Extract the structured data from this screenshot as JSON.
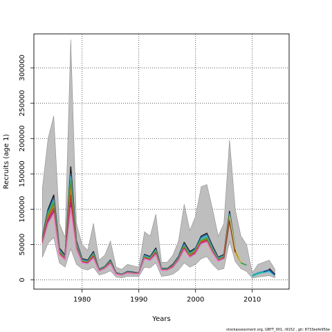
{
  "chart_data": {
    "type": "line",
    "xlabel": "Years",
    "ylabel": "Recruits (age 1)",
    "xlim": [
      1971.5,
      2016.5
    ],
    "ylim": [
      -13000,
      348000
    ],
    "x_ticks": [
      1980,
      1990,
      2000,
      2010
    ],
    "y_ticks": [
      0,
      50000,
      100000,
      150000,
      200000,
      250000,
      300000
    ],
    "grid": true,
    "footer": "stockassessment.org, GBYT_001, r9152 , git: 8733eefe95be",
    "x": [
      1973,
      1974,
      1975,
      1976,
      1977,
      1978,
      1979,
      1980,
      1981,
      1982,
      1983,
      1984,
      1985,
      1986,
      1987,
      1988,
      1989,
      1990,
      1991,
      1992,
      1993,
      1994,
      1995,
      1996,
      1997,
      1998,
      1999,
      2000,
      2001,
      2002,
      2003,
      2004,
      2005,
      2006,
      2007,
      2008,
      2009,
      2010,
      2011,
      2012,
      2013,
      2014
    ],
    "band_upper": [
      130000,
      200000,
      232000,
      80000,
      60000,
      340000,
      80000,
      50000,
      42000,
      80000,
      28000,
      35000,
      55000,
      18000,
      15000,
      22000,
      20000,
      18000,
      68000,
      62000,
      93000,
      25000,
      25000,
      35000,
      55000,
      107000,
      70000,
      90000,
      132000,
      135000,
      100000,
      62000,
      80000,
      198000,
      100000,
      62000,
      50000,
      10000,
      22000,
      25000,
      28000,
      15000
    ],
    "band_lower": [
      32000,
      52000,
      60000,
      24000,
      18000,
      44000,
      22000,
      16000,
      14000,
      18000,
      7000,
      9000,
      13000,
      4000,
      3000,
      5000,
      5000,
      5000,
      18000,
      17000,
      24000,
      5000,
      6000,
      8000,
      14000,
      24000,
      18000,
      22000,
      30000,
      33000,
      22000,
      14000,
      16000,
      55000,
      26000,
      16000,
      12000,
      2500,
      4000,
      5000,
      6000,
      3000
    ],
    "series": [
      {
        "color": "#1f1f1f",
        "values": [
          60000,
          100000,
          120000,
          45000,
          35000,
          160000,
          55000,
          30000,
          28000,
          40000,
          15000,
          19000,
          28000,
          10000,
          8000,
          12000,
          11000,
          10000,
          36000,
          33000,
          45000,
          16000,
          16000,
          22000,
          33000,
          53000,
          40000,
          45000,
          62000,
          66000,
          48000,
          32000,
          36000,
          97000,
          45000,
          null,
          null,
          null,
          null,
          null,
          16000,
          8000
        ]
      },
      {
        "color": "#2a6fb5",
        "values": [
          58000,
          97000,
          115000,
          43000,
          33000,
          150000,
          53000,
          29000,
          27000,
          38000,
          14500,
          18500,
          27000,
          9500,
          7800,
          11500,
          10500,
          9800,
          35000,
          32000,
          43000,
          15500,
          15500,
          21000,
          32000,
          51000,
          38000,
          44000,
          60000,
          64000,
          46000,
          31000,
          35000,
          94000,
          44000,
          null,
          null,
          6500,
          10000,
          12000,
          14000,
          7500
        ]
      },
      {
        "color": "#3cb8c9",
        "values": [
          57000,
          94000,
          112000,
          42000,
          32000,
          146000,
          52000,
          28000,
          26000,
          37000,
          14000,
          18000,
          26000,
          9200,
          7500,
          11000,
          10200,
          9500,
          34000,
          31000,
          42000,
          15000,
          15000,
          20500,
          31000,
          49000,
          37000,
          43000,
          58000,
          62000,
          44000,
          30000,
          34000,
          92000,
          43000,
          null,
          null,
          6000,
          9500,
          11500,
          13000,
          7000
        ]
      },
      {
        "color": "#3aa84a",
        "values": [
          56000,
          92000,
          110000,
          41000,
          31000,
          140000,
          50000,
          27000,
          25500,
          36000,
          13800,
          17500,
          25500,
          9000,
          7300,
          10800,
          10000,
          9300,
          33000,
          30000,
          41000,
          14800,
          14800,
          20000,
          30000,
          48000,
          36000,
          42000,
          56000,
          60000,
          43000,
          29000,
          33000,
          90000,
          42000,
          null,
          null,
          5800,
          9000,
          11000,
          12500,
          6800
        ]
      },
      {
        "color": "#6b8e23",
        "values": [
          55000,
          90000,
          107000,
          40000,
          30500,
          135000,
          49000,
          26500,
          25000,
          35000,
          13500,
          17000,
          25000,
          8800,
          7200,
          10500,
          9800,
          9100,
          32000,
          29500,
          40000,
          14500,
          14500,
          19500,
          29500,
          47000,
          35000,
          41000,
          55000,
          58000,
          42000,
          28500,
          32000,
          88000,
          41000,
          null,
          null,
          null,
          null,
          null,
          null,
          null
        ]
      },
      {
        "color": "#b8860b",
        "values": [
          54000,
          88000,
          104000,
          39000,
          30000,
          128000,
          48000,
          26000,
          24500,
          34000,
          13200,
          16800,
          24500,
          8600,
          7000,
          10300,
          9600,
          9000,
          31500,
          29000,
          39000,
          14200,
          14200,
          19000,
          29000,
          46000,
          34000,
          40000,
          54000,
          57000,
          41000,
          28000,
          31500,
          86000,
          40000,
          25000,
          null,
          null,
          null,
          null,
          null,
          null
        ]
      },
      {
        "color": "#c0392b",
        "values": [
          53000,
          86000,
          101000,
          38000,
          29500,
          120000,
          47000,
          25500,
          24000,
          33000,
          13000,
          16500,
          24000,
          8400,
          6900,
          10100,
          9400,
          8800,
          31000,
          28500,
          38000,
          14000,
          14000,
          18500,
          28500,
          45000,
          33000,
          39000,
          53000,
          56000,
          40000,
          27500,
          31000,
          84000,
          39000,
          null,
          null,
          null,
          null,
          null,
          null,
          null
        ]
      },
      {
        "color": "#7a1f1f",
        "values": [
          null,
          null,
          null,
          null,
          null,
          null,
          null,
          null,
          null,
          null,
          null,
          null,
          null,
          null,
          null,
          null,
          null,
          null,
          null,
          null,
          null,
          null,
          null,
          null,
          null,
          null,
          null,
          null,
          null,
          null,
          null,
          null,
          null,
          84000,
          40000,
          null,
          null,
          null,
          null,
          null,
          null,
          null
        ]
      },
      {
        "color": "#c2187a",
        "values": [
          52000,
          83000,
          97000,
          37000,
          29000,
          110000,
          45000,
          25000,
          23500,
          32000,
          12800,
          16200,
          23500,
          8200,
          6800,
          9900,
          9200,
          8600,
          30500,
          28000,
          37000,
          13800,
          13800,
          18000,
          28000,
          44000,
          32500,
          38000,
          52000,
          55000,
          39000,
          27000,
          30500,
          null,
          null,
          null,
          null,
          null,
          null,
          null,
          null,
          null
        ]
      },
      {
        "color": "#e377c2",
        "values": [
          51000,
          80000,
          94000,
          36000,
          28500,
          102000,
          44000,
          24500,
          23000,
          31000,
          12500,
          16000,
          23000,
          8000,
          6700,
          9700,
          9000,
          8500,
          30000,
          27500,
          36000,
          13600,
          13600,
          17500,
          27500,
          43000,
          32000,
          37000,
          51000,
          54000,
          38500,
          26500,
          30000,
          null,
          null,
          null,
          null,
          null,
          null,
          null,
          null,
          null
        ]
      },
      {
        "color": "#d4c84a",
        "values": [
          null,
          null,
          null,
          null,
          null,
          null,
          null,
          null,
          null,
          null,
          null,
          null,
          null,
          null,
          null,
          null,
          null,
          null,
          null,
          null,
          null,
          null,
          null,
          null,
          null,
          null,
          null,
          null,
          null,
          null,
          null,
          null,
          null,
          90000,
          45000,
          26000,
          null,
          null,
          null,
          null,
          null,
          null
        ]
      },
      {
        "color": "#2ca02c",
        "values": [
          null,
          null,
          null,
          null,
          null,
          null,
          null,
          null,
          null,
          null,
          null,
          null,
          null,
          null,
          null,
          null,
          null,
          null,
          null,
          null,
          null,
          null,
          null,
          null,
          null,
          null,
          null,
          null,
          null,
          null,
          null,
          null,
          null,
          null,
          null,
          24000,
          21000,
          null,
          null,
          null,
          null,
          null
        ]
      },
      {
        "color": "#17becf",
        "values": [
          null,
          null,
          null,
          null,
          null,
          null,
          null,
          null,
          null,
          null,
          null,
          null,
          null,
          null,
          null,
          null,
          null,
          null,
          null,
          null,
          null,
          null,
          null,
          null,
          null,
          null,
          null,
          null,
          null,
          null,
          null,
          null,
          null,
          null,
          null,
          null,
          null,
          5000,
          8500,
          10500,
          12000,
          6500
        ]
      },
      {
        "color": "#1f3f99",
        "values": [
          null,
          null,
          null,
          null,
          null,
          null,
          null,
          null,
          null,
          null,
          null,
          null,
          null,
          null,
          null,
          null,
          null,
          null,
          null,
          null,
          null,
          null,
          null,
          null,
          null,
          null,
          null,
          null,
          null,
          null,
          null,
          null,
          null,
          null,
          null,
          null,
          null,
          null,
          null,
          11500,
          14500,
          7200
        ]
      }
    ]
  }
}
